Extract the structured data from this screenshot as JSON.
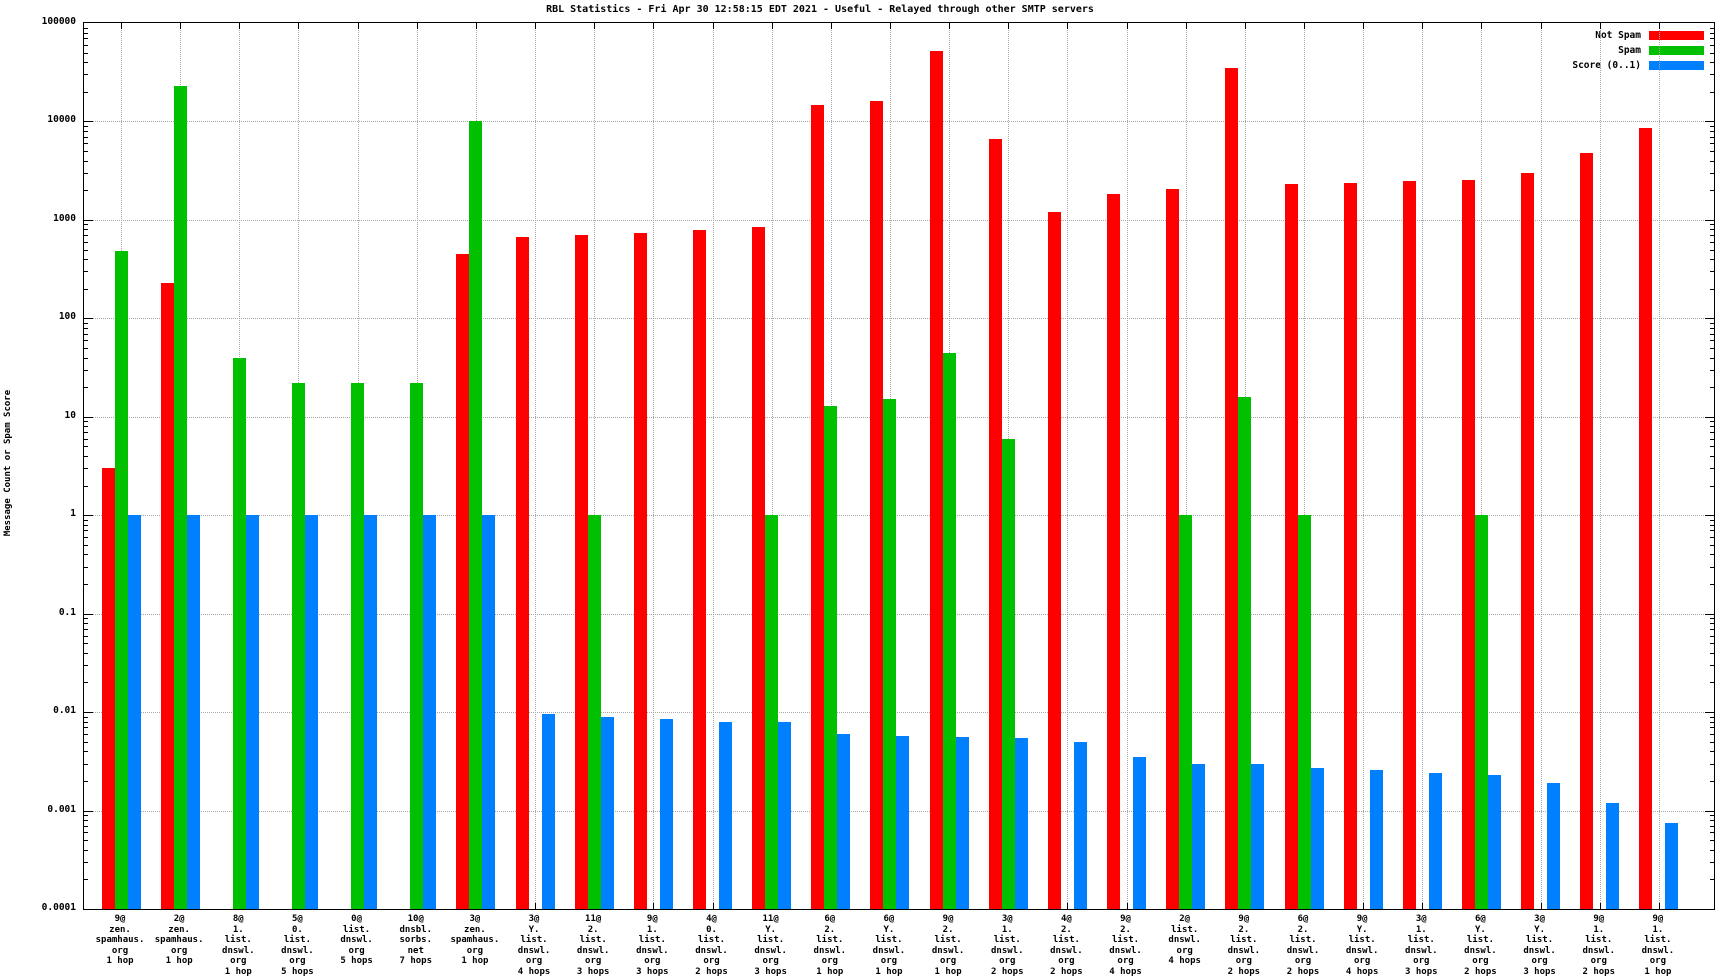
{
  "title": "RBL Statistics - Fri Apr 30 12:58:15 EDT 2021 - Useful - Relayed through other SMTP servers",
  "y_axis_title": "Message Count or Spam Score",
  "legend": {
    "position": "top-right",
    "items": [
      {
        "label": "Not Spam",
        "color": "#ff0000"
      },
      {
        "label": "Spam",
        "color": "#00c000"
      },
      {
        "label": "Score (0..1)",
        "color": "#0080ff"
      }
    ]
  },
  "chart_data": {
    "type": "bar",
    "title": "RBL Statistics - Fri Apr 30 12:58:15 EDT 2021 - Useful - Relayed through other SMTP servers",
    "xlabel": "",
    "ylabel": "Message Count or Spam Score",
    "yscale": "log",
    "ylim": [
      0.0001,
      100000
    ],
    "ytick_labels": [
      "100000",
      "10000",
      "1000",
      "100",
      "10",
      "1",
      "0.1",
      "0.01",
      "0.001",
      "0.0001"
    ],
    "grid": true,
    "legend_position": "top-right",
    "categories": [
      [
        "9@",
        "zen.",
        "spamhaus.",
        "org",
        "1 hop"
      ],
      [
        "2@",
        "zen.",
        "spamhaus.",
        "org",
        "1 hop"
      ],
      [
        "8@",
        "1.",
        "list.",
        "dnswl.",
        "org",
        "1 hop"
      ],
      [
        "5@",
        "0.",
        "list.",
        "dnswl.",
        "org",
        "5 hops"
      ],
      [
        "0@",
        "list.",
        "dnswl.",
        "org",
        "5 hops"
      ],
      [
        "10@",
        "dnsbl.",
        "sorbs.",
        "net",
        "7 hops"
      ],
      [
        "3@",
        "zen.",
        "spamhaus.",
        "org",
        "1 hop"
      ],
      [
        "3@",
        "Y.",
        "list.",
        "dnswl.",
        "org",
        "4 hops"
      ],
      [
        "11@",
        "2.",
        "list.",
        "dnswl.",
        "org",
        "3 hops"
      ],
      [
        "9@",
        "1.",
        "list.",
        "dnswl.",
        "org",
        "3 hops"
      ],
      [
        "4@",
        "0.",
        "list.",
        "dnswl.",
        "org",
        "2 hops"
      ],
      [
        "11@",
        "Y.",
        "list.",
        "dnswl.",
        "org",
        "3 hops"
      ],
      [
        "6@",
        "2.",
        "list.",
        "dnswl.",
        "org",
        "1 hop"
      ],
      [
        "6@",
        "Y.",
        "list.",
        "dnswl.",
        "org",
        "1 hop"
      ],
      [
        "9@",
        "2.",
        "list.",
        "dnswl.",
        "org",
        "1 hop"
      ],
      [
        "3@",
        "1.",
        "list.",
        "dnswl.",
        "org",
        "2 hops"
      ],
      [
        "4@",
        "2.",
        "list.",
        "dnswl.",
        "org",
        "2 hops"
      ],
      [
        "9@",
        "2.",
        "list.",
        "dnswl.",
        "org",
        "4 hops"
      ],
      [
        "2@",
        "list.",
        "dnswl.",
        "org",
        "4 hops"
      ],
      [
        "9@",
        "2.",
        "list.",
        "dnswl.",
        "org",
        "2 hops"
      ],
      [
        "6@",
        "2.",
        "list.",
        "dnswl.",
        "org",
        "2 hops"
      ],
      [
        "9@",
        "Y.",
        "list.",
        "dnswl.",
        "org",
        "4 hops"
      ],
      [
        "3@",
        "1.",
        "list.",
        "dnswl.",
        "org",
        "3 hops"
      ],
      [
        "6@",
        "Y.",
        "list.",
        "dnswl.",
        "org",
        "2 hops"
      ],
      [
        "3@",
        "Y.",
        "list.",
        "dnswl.",
        "org",
        "3 hops"
      ],
      [
        "9@",
        "1.",
        "list.",
        "dnswl.",
        "org",
        "2 hops"
      ],
      [
        "9@",
        "1.",
        "list.",
        "dnswl.",
        "org",
        "1 hop"
      ]
    ],
    "series": [
      {
        "name": "Not Spam",
        "color": "#ff0000",
        "values": [
          3,
          230,
          null,
          null,
          null,
          null,
          450,
          670,
          700,
          730,
          790,
          840,
          14700,
          16200,
          52000,
          6600,
          1200,
          1820,
          2050,
          35000,
          2300,
          2350,
          2500,
          2550,
          3000,
          4800,
          8500
        ]
      },
      {
        "name": "Spam",
        "color": "#00c000",
        "values": [
          480,
          23000,
          40,
          22,
          22,
          22,
          10000,
          null,
          1,
          null,
          null,
          1,
          13,
          15,
          44,
          6,
          null,
          null,
          1,
          16,
          1,
          null,
          null,
          1,
          null,
          null,
          null
        ]
      },
      {
        "name": "Score (0..1)",
        "color": "#0080ff",
        "values": [
          1,
          1,
          1,
          1,
          1,
          1,
          1,
          0.0095,
          0.009,
          0.0085,
          0.008,
          0.0079,
          0.006,
          0.0057,
          0.0056,
          0.0055,
          0.005,
          0.0035,
          0.003,
          0.003,
          0.0027,
          0.0026,
          0.0024,
          0.0023,
          0.0019,
          0.0012,
          0.00075
        ]
      }
    ]
  }
}
